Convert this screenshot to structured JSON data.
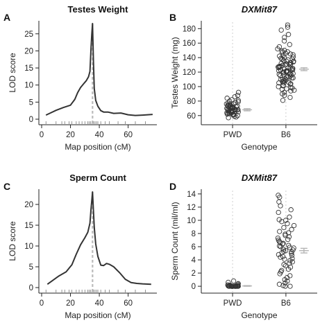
{
  "chart_data": [
    {
      "panel": "A",
      "type": "line",
      "title": "Testes Weight",
      "xlabel": "Map position (cM)",
      "ylabel": "LOD score",
      "xlim": [
        0,
        78
      ],
      "ylim": [
        0,
        28
      ],
      "x_ticks": [
        0,
        20,
        40,
        60
      ],
      "y_ticks": [
        0,
        5,
        10,
        15,
        20,
        25
      ],
      "peak_marker_x": 35.3,
      "series": [
        {
          "x": [
            3,
            6,
            10,
            15,
            20,
            23,
            25,
            27,
            29,
            31,
            32.5,
            33.5,
            34.3,
            34.8,
            35.3,
            35.9,
            36.5,
            37.5,
            39,
            41,
            43,
            46,
            50,
            55,
            60,
            65,
            70,
            77
          ],
          "y": [
            1.2,
            1.8,
            2.6,
            3.4,
            4.1,
            5.8,
            7.8,
            9.3,
            10.3,
            11.3,
            12.4,
            14,
            21,
            25,
            28,
            17,
            9,
            5.5,
            3.8,
            2.5,
            2.1,
            2.1,
            1.7,
            1.8,
            1.3,
            1.1,
            1.2,
            1.4
          ]
        }
      ],
      "marker_positions": [
        3,
        10,
        14,
        16,
        19,
        21,
        24,
        26,
        28,
        30,
        32,
        33,
        34,
        35,
        36,
        37,
        38,
        39,
        41,
        44,
        47,
        53,
        58,
        65,
        72
      ]
    },
    {
      "panel": "B",
      "type": "scatter",
      "title": "DXMit87",
      "xlabel": "Genotype",
      "ylabel": "Testes Weight (mg)",
      "categories": [
        "PWD",
        "B6"
      ],
      "ylim": [
        55,
        187
      ],
      "y_ticks": [
        60,
        80,
        100,
        120,
        140,
        160,
        180
      ],
      "means": [
        68,
        124
      ],
      "se": [
        1.5,
        2
      ],
      "points": [
        [
          57,
          58,
          59,
          60,
          61,
          61,
          62,
          62,
          63,
          63,
          64,
          64,
          64,
          65,
          65,
          65,
          66,
          66,
          66,
          67,
          67,
          67,
          68,
          68,
          68,
          69,
          69,
          69,
          70,
          70,
          70,
          71,
          71,
          71,
          72,
          72,
          72,
          73,
          73,
          74,
          74,
          75,
          75,
          76,
          76,
          77,
          78,
          79,
          80,
          81,
          82,
          84,
          86,
          88,
          92
        ],
        [
          81,
          85,
          88,
          90,
          92,
          94,
          95,
          96,
          97,
          98,
          99,
          100,
          101,
          102,
          103,
          104,
          105,
          105,
          106,
          107,
          108,
          108,
          109,
          110,
          110,
          111,
          112,
          112,
          113,
          114,
          114,
          115,
          116,
          116,
          117,
          117,
          118,
          118,
          119,
          120,
          120,
          121,
          121,
          122,
          122,
          123,
          123,
          124,
          124,
          125,
          125,
          126,
          126,
          127,
          127,
          128,
          128,
          129,
          130,
          130,
          131,
          131,
          132,
          133,
          133,
          134,
          135,
          135,
          136,
          137,
          138,
          138,
          139,
          140,
          141,
          142,
          143,
          144,
          145,
          146,
          147,
          148,
          149,
          150,
          152,
          155,
          158,
          163,
          168,
          172,
          178,
          182,
          185
        ]
      ]
    },
    {
      "panel": "C",
      "type": "line",
      "title": "Sperm Count",
      "xlabel": "Map position (cM)",
      "ylabel": "LOD score",
      "xlim": [
        0,
        78
      ],
      "ylim": [
        0,
        23
      ],
      "x_ticks": [
        0,
        20,
        40,
        60
      ],
      "y_ticks": [
        0,
        5,
        10,
        15,
        20
      ],
      "peak_marker_x": 35.3,
      "series": [
        {
          "x": [
            4,
            8,
            12,
            17,
            21,
            24,
            27,
            30,
            32,
            33.5,
            34.3,
            34.8,
            35.3,
            35.9,
            36.5,
            37.5,
            39,
            41,
            43,
            45,
            47,
            50,
            54,
            58,
            62,
            66,
            70,
            76
          ],
          "y": [
            0.8,
            1.8,
            2.8,
            3.8,
            5.5,
            8,
            10.3,
            12,
            13.3,
            15.5,
            19,
            21,
            23,
            18.5,
            14.5,
            10.5,
            7.5,
            5.4,
            5.3,
            5.8,
            5.6,
            5,
            3.6,
            2,
            1.2,
            1,
            0.9,
            0.8
          ]
        }
      ],
      "marker_positions": [
        3,
        10,
        14,
        16,
        19,
        21,
        24,
        26,
        28,
        30,
        32,
        33,
        34,
        35,
        36,
        37,
        38,
        39,
        41,
        44,
        47,
        53,
        58,
        65,
        72
      ]
    },
    {
      "panel": "D",
      "type": "scatter",
      "title": "DXMit87",
      "xlabel": "Genotype",
      "ylabel": "Sperm Count (mil/ml)",
      "categories": [
        "PWD",
        "B6"
      ],
      "ylim": [
        -0.2,
        14.3
      ],
      "y_ticks": [
        0,
        2,
        4,
        6,
        8,
        10,
        12,
        14
      ],
      "means": [
        0.05,
        5.4
      ],
      "se": [
        0.05,
        0.35
      ],
      "points": [
        [
          0,
          0,
          0,
          0,
          0,
          0,
          0,
          0,
          0,
          0,
          0,
          0,
          0,
          0,
          0,
          0,
          0,
          0,
          0,
          0,
          0.02,
          0.03,
          0.05,
          0.05,
          0.08,
          0.1,
          0.12,
          0.15,
          0.2,
          0.3,
          0.4,
          0.6,
          0.8
        ],
        [
          0,
          0,
          0.1,
          0.3,
          0.5,
          0.8,
          1,
          1.3,
          1.6,
          1.9,
          2.2,
          2.4,
          2.6,
          2.9,
          3.1,
          3.3,
          3.5,
          3.7,
          3.9,
          4.1,
          4.2,
          4.4,
          4.5,
          4.7,
          4.8,
          5,
          5.1,
          5.2,
          5.3,
          5.4,
          5.5,
          5.6,
          5.8,
          5.9,
          6,
          6.1,
          6.2,
          6.4,
          6.5,
          6.6,
          6.8,
          7,
          7.1,
          7.3,
          7.5,
          7.7,
          7.9,
          8.1,
          8.3,
          8.6,
          8.9,
          9.2,
          9.5,
          9.8,
          10,
          10.1,
          10.5,
          11.2,
          11.6,
          12.2,
          12.8,
          13.5,
          13.8
        ]
      ]
    }
  ]
}
